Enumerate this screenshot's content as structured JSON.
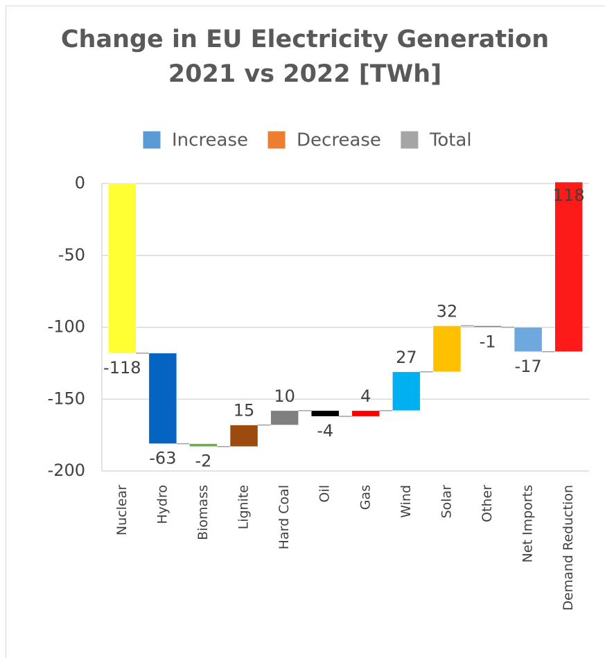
{
  "chart_data": {
    "type": "waterfall",
    "title": "Change in EU Electricity Generation 2021 vs 2022 [TWh]",
    "legend": [
      {
        "name": "Increase",
        "color": "#5b9bd5"
      },
      {
        "name": "Decrease",
        "color": "#ed7d31"
      },
      {
        "name": "Total",
        "color": "#a5a5a5"
      }
    ],
    "categories": [
      "Nuclear",
      "Hydro",
      "Biomass",
      "Lignite",
      "Hard Coal",
      "Oil",
      "Gas",
      "Wind",
      "Solar",
      "Other",
      "Net Imports",
      "Demand Reduction"
    ],
    "values": [
      -118,
      -63,
      -2,
      15,
      10,
      -4,
      4,
      27,
      32,
      -1,
      -17,
      118
    ],
    "colors": [
      "#ffff33",
      "#0563c1",
      "#70ad47",
      "#9c4a0f",
      "#7f7f7f",
      "#000000",
      "#ff0000",
      "#00b0f0",
      "#ffc000",
      "#7f7f7f",
      "#6fa8dc",
      "#ff1a1a"
    ],
    "ylim": [
      -200,
      0
    ],
    "yticks": [
      0,
      -50,
      -100,
      -150,
      -200
    ],
    "grid": true
  }
}
